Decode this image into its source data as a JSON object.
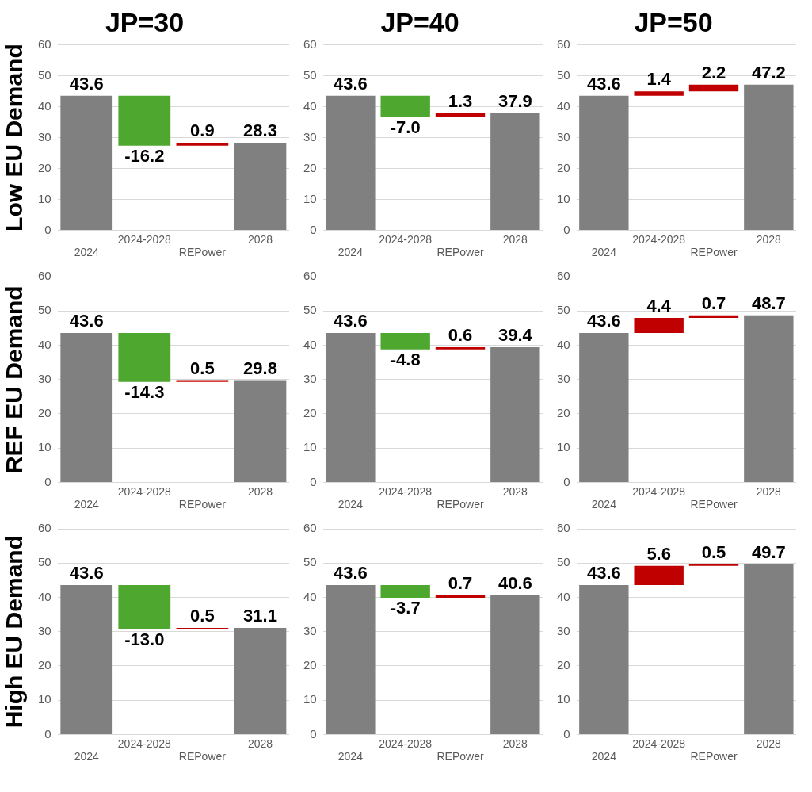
{
  "chart_data": [
    {
      "type": "bar",
      "title": "JP=30",
      "ylabel": "Low EU Demand",
      "categories": [
        "2024",
        "2024-2028",
        "REPower",
        "2028"
      ],
      "values": [
        43.6,
        -16.2,
        0.9,
        28.3
      ],
      "base": [
        0,
        43.6,
        27.4,
        0
      ],
      "colors": [
        "#808080",
        "#4ea72e",
        "#c00000",
        "#808080"
      ],
      "value_labels": [
        "43.6",
        "-16.2",
        "0.9",
        "28.3"
      ],
      "ylim": [
        0,
        60
      ],
      "yticks": [
        0,
        10,
        20,
        30,
        40,
        50,
        60
      ],
      "grid": "y",
      "legend": false
    },
    {
      "type": "bar",
      "title": "JP=40",
      "categories": [
        "2024",
        "2024-2028",
        "REPower",
        "2028"
      ],
      "values": [
        43.6,
        -7.0,
        1.3,
        37.9
      ],
      "base": [
        0,
        43.6,
        36.6,
        0
      ],
      "colors": [
        "#808080",
        "#4ea72e",
        "#c00000",
        "#808080"
      ],
      "value_labels": [
        "43.6",
        "-7.0",
        "1.3",
        "37.9"
      ],
      "ylim": [
        0,
        60
      ],
      "yticks": [
        0,
        10,
        20,
        30,
        40,
        50,
        60
      ],
      "grid": "y",
      "legend": false
    },
    {
      "type": "bar",
      "title": "JP=50",
      "categories": [
        "2024",
        "2024-2028",
        "REPower",
        "2028"
      ],
      "values": [
        43.6,
        1.4,
        2.2,
        47.2
      ],
      "base": [
        0,
        43.6,
        45.0,
        0
      ],
      "colors": [
        "#808080",
        "#c00000",
        "#c00000",
        "#808080"
      ],
      "value_labels": [
        "43.6",
        "1.4",
        "2.2",
        "47.2"
      ],
      "ylim": [
        0,
        60
      ],
      "yticks": [
        0,
        10,
        20,
        30,
        40,
        50,
        60
      ],
      "grid": "y",
      "legend": false
    },
    {
      "type": "bar",
      "ylabel": "REF EU Demand",
      "categories": [
        "2024",
        "2024-2028",
        "REPower",
        "2028"
      ],
      "values": [
        43.6,
        -14.3,
        0.5,
        29.8
      ],
      "base": [
        0,
        43.6,
        29.3,
        0
      ],
      "colors": [
        "#808080",
        "#4ea72e",
        "#c00000",
        "#808080"
      ],
      "value_labels": [
        "43.6",
        "-14.3",
        "0.5",
        "29.8"
      ],
      "ylim": [
        0,
        60
      ],
      "yticks": [
        0,
        10,
        20,
        30,
        40,
        50,
        60
      ],
      "grid": "y",
      "legend": false
    },
    {
      "type": "bar",
      "categories": [
        "2024",
        "2024-2028",
        "REPower",
        "2028"
      ],
      "values": [
        43.6,
        -4.8,
        0.6,
        39.4
      ],
      "base": [
        0,
        43.6,
        38.8,
        0
      ],
      "colors": [
        "#808080",
        "#4ea72e",
        "#c00000",
        "#808080"
      ],
      "value_labels": [
        "43.6",
        "-4.8",
        "0.6",
        "39.4"
      ],
      "ylim": [
        0,
        60
      ],
      "yticks": [
        0,
        10,
        20,
        30,
        40,
        50,
        60
      ],
      "grid": "y",
      "legend": false
    },
    {
      "type": "bar",
      "categories": [
        "2024",
        "2024-2028",
        "REPower",
        "2028"
      ],
      "values": [
        43.6,
        4.4,
        0.7,
        48.7
      ],
      "base": [
        0,
        43.6,
        48.0,
        0
      ],
      "colors": [
        "#808080",
        "#c00000",
        "#c00000",
        "#808080"
      ],
      "value_labels": [
        "43.6",
        "4.4",
        "0.7",
        "48.7"
      ],
      "ylim": [
        0,
        60
      ],
      "yticks": [
        0,
        10,
        20,
        30,
        40,
        50,
        60
      ],
      "grid": "y",
      "legend": false
    },
    {
      "type": "bar",
      "ylabel": "High EU Demand",
      "categories": [
        "2024",
        "2024-2028",
        "REPower",
        "2028"
      ],
      "values": [
        43.6,
        -13.0,
        0.5,
        31.1
      ],
      "base": [
        0,
        43.6,
        30.6,
        0
      ],
      "colors": [
        "#808080",
        "#4ea72e",
        "#c00000",
        "#808080"
      ],
      "value_labels": [
        "43.6",
        "-13.0",
        "0.5",
        "31.1"
      ],
      "ylim": [
        0,
        60
      ],
      "yticks": [
        0,
        10,
        20,
        30,
        40,
        50,
        60
      ],
      "grid": "y",
      "legend": false
    },
    {
      "type": "bar",
      "categories": [
        "2024",
        "2024-2028",
        "REPower",
        "2028"
      ],
      "values": [
        43.6,
        -3.7,
        0.7,
        40.6
      ],
      "base": [
        0,
        43.6,
        39.9,
        0
      ],
      "colors": [
        "#808080",
        "#4ea72e",
        "#c00000",
        "#808080"
      ],
      "value_labels": [
        "43.6",
        "-3.7",
        "0.7",
        "40.6"
      ],
      "ylim": [
        0,
        60
      ],
      "yticks": [
        0,
        10,
        20,
        30,
        40,
        50,
        60
      ],
      "grid": "y",
      "legend": false
    },
    {
      "type": "bar",
      "categories": [
        "2024",
        "2024-2028",
        "REPower",
        "2028"
      ],
      "values": [
        43.6,
        5.6,
        0.5,
        49.7
      ],
      "base": [
        0,
        43.6,
        49.2,
        0
      ],
      "colors": [
        "#808080",
        "#c00000",
        "#c00000",
        "#808080"
      ],
      "value_labels": [
        "43.6",
        "5.6",
        "0.5",
        "49.7"
      ],
      "ylim": [
        0,
        60
      ],
      "yticks": [
        0,
        10,
        20,
        30,
        40,
        50,
        60
      ],
      "grid": "y",
      "legend": false
    }
  ]
}
